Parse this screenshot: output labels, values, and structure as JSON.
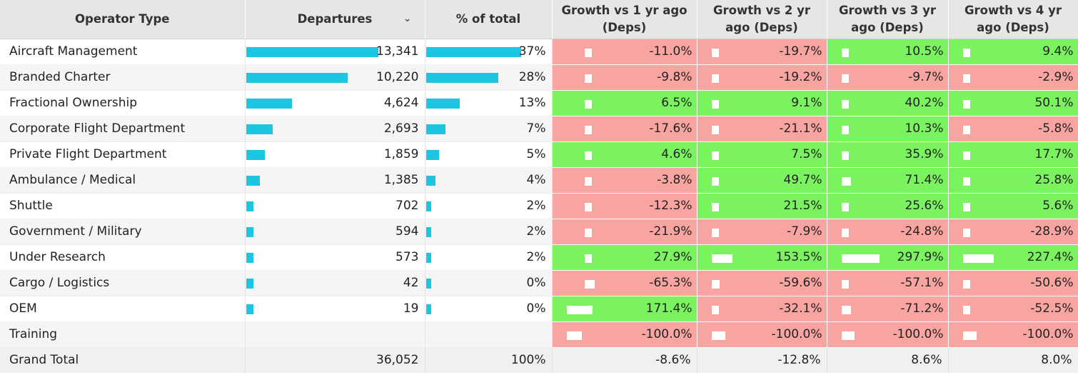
{
  "headers": {
    "operator": "Operator Type",
    "departures": "Departures",
    "pct": "% of total",
    "g1": "Growth vs 1 yr ago (Deps)",
    "g2": "Growth vs 2 yr ago (Deps)",
    "g3": "Growth vs 3 yr ago (Deps)",
    "g4": "Growth vs 4 yr ago (Deps)",
    "sort_icon": "chevron-down-icon"
  },
  "colors": {
    "bar": "#1cc6e0",
    "negative": "#f8a4a0",
    "positive": "#7bf25f",
    "header": "#e6e6e6"
  },
  "rows": [
    {
      "op": "Aircraft Management",
      "dep": "13,341",
      "dep_frac": 1.0,
      "pct": "37%",
      "pct_frac": 1.0,
      "g": [
        {
          "v": "-11.0%",
          "s": "neg",
          "b": 0.022
        },
        {
          "v": "-19.7%",
          "s": "neg",
          "b": 0.022
        },
        {
          "v": "10.5%",
          "s": "pos",
          "b": 0.022
        },
        {
          "v": "9.4%",
          "s": "pos",
          "b": 0.022
        }
      ]
    },
    {
      "op": "Branded Charter",
      "dep": "10,220",
      "dep_frac": 0.766,
      "pct": "28%",
      "pct_frac": 0.757,
      "g": [
        {
          "v": "-9.8%",
          "s": "neg",
          "b": 0.022
        },
        {
          "v": "-19.2%",
          "s": "neg",
          "b": 0.022
        },
        {
          "v": "-9.7%",
          "s": "neg",
          "b": 0.022
        },
        {
          "v": "-2.9%",
          "s": "neg",
          "b": 0.022
        }
      ]
    },
    {
      "op": "Fractional Ownership",
      "dep": "4,624",
      "dep_frac": 0.347,
      "pct": "13%",
      "pct_frac": 0.351,
      "g": [
        {
          "v": "6.5%",
          "s": "pos",
          "b": 0.022
        },
        {
          "v": "9.1%",
          "s": "pos",
          "b": 0.022
        },
        {
          "v": "40.2%",
          "s": "pos",
          "b": 0.022
        },
        {
          "v": "50.1%",
          "s": "pos",
          "b": 0.05
        }
      ]
    },
    {
      "op": "Corporate Flight Department",
      "dep": "2,693",
      "dep_frac": 0.202,
      "pct": "7%",
      "pct_frac": 0.2,
      "g": [
        {
          "v": "-17.6%",
          "s": "neg",
          "b": 0.022
        },
        {
          "v": "-21.1%",
          "s": "neg",
          "b": 0.022
        },
        {
          "v": "10.3%",
          "s": "pos",
          "b": 0.022
        },
        {
          "v": "-5.8%",
          "s": "neg",
          "b": 0.022
        }
      ]
    },
    {
      "op": "Private Flight Department",
      "dep": "1,859",
      "dep_frac": 0.139,
      "pct": "5%",
      "pct_frac": 0.135,
      "g": [
        {
          "v": "4.6%",
          "s": "pos",
          "b": 0.022
        },
        {
          "v": "7.5%",
          "s": "pos",
          "b": 0.022
        },
        {
          "v": "35.9%",
          "s": "pos",
          "b": 0.022
        },
        {
          "v": "17.7%",
          "s": "pos",
          "b": 0.022
        }
      ]
    },
    {
      "op": "Ambulance / Medical",
      "dep": "1,385",
      "dep_frac": 0.104,
      "pct": "4%",
      "pct_frac": 0.1,
      "g": [
        {
          "v": "-3.8%",
          "s": "neg",
          "b": 0.022
        },
        {
          "v": "49.7%",
          "s": "pos",
          "b": 0.05
        },
        {
          "v": "71.4%",
          "s": "pos",
          "b": 0.072
        },
        {
          "v": "25.8%",
          "s": "pos",
          "b": 0.022
        }
      ]
    },
    {
      "op": "Shuttle",
      "dep": "702",
      "dep_frac": 0.053,
      "pct": "2%",
      "pct_frac": 0.054,
      "g": [
        {
          "v": "-12.3%",
          "s": "neg",
          "b": 0.022
        },
        {
          "v": "21.5%",
          "s": "pos",
          "b": 0.022
        },
        {
          "v": "25.6%",
          "s": "pos",
          "b": 0.022
        },
        {
          "v": "5.6%",
          "s": "pos",
          "b": 0.022
        }
      ]
    },
    {
      "op": "Government / Military",
      "dep": "594",
      "dep_frac": 0.045,
      "pct": "2%",
      "pct_frac": 0.054,
      "g": [
        {
          "v": "-21.9%",
          "s": "neg",
          "b": 0.022
        },
        {
          "v": "-7.9%",
          "s": "neg",
          "b": 0.022
        },
        {
          "v": "-24.8%",
          "s": "neg",
          "b": 0.025
        },
        {
          "v": "-28.9%",
          "s": "neg",
          "b": 0.029
        }
      ]
    },
    {
      "op": "Under Research",
      "dep": "573",
      "dep_frac": 0.043,
      "pct": "2%",
      "pct_frac": 0.054,
      "g": [
        {
          "v": "27.9%",
          "s": "pos",
          "b": 0.028
        },
        {
          "v": "153.5%",
          "s": "pos",
          "b": 0.154
        },
        {
          "v": "297.9%",
          "s": "pos",
          "b": 0.298
        },
        {
          "v": "227.4%",
          "s": "pos",
          "b": 0.227
        }
      ]
    },
    {
      "op": "Cargo / Logistics",
      "dep": "42",
      "dep_frac": 0.003,
      "pct": "0%",
      "pct_frac": 0.054,
      "g": [
        {
          "v": "-65.3%",
          "s": "neg",
          "b": 0.065
        },
        {
          "v": "-59.6%",
          "s": "neg",
          "b": 0.06
        },
        {
          "v": "-57.1%",
          "s": "neg",
          "b": 0.057
        },
        {
          "v": "-50.6%",
          "s": "neg",
          "b": 0.051
        }
      ]
    },
    {
      "op": "OEM",
      "dep": "19",
      "dep_frac": 0.001,
      "pct": "0%",
      "pct_frac": 0.054,
      "g": [
        {
          "v": "171.4%",
          "s": "pos",
          "b": 0.171
        },
        {
          "v": "-32.1%",
          "s": "neg",
          "b": 0.032
        },
        {
          "v": "-71.2%",
          "s": "neg",
          "b": 0.071
        },
        {
          "v": "-52.5%",
          "s": "neg",
          "b": 0.053
        }
      ]
    },
    {
      "op": "Training",
      "dep": "",
      "dep_frac": 0,
      "pct": "",
      "pct_frac": 0,
      "g": [
        {
          "v": "-100.0%",
          "s": "neg",
          "b": 0.1
        },
        {
          "v": "-100.0%",
          "s": "neg",
          "b": 0.1
        },
        {
          "v": "-100.0%",
          "s": "neg",
          "b": 0.1
        },
        {
          "v": "-100.0%",
          "s": "neg",
          "b": 0.1
        }
      ]
    }
  ],
  "total": {
    "op": "Grand Total",
    "dep": "36,052",
    "pct": "100%",
    "g": [
      "-8.6%",
      "-12.8%",
      "8.6%",
      "8.0%"
    ]
  }
}
